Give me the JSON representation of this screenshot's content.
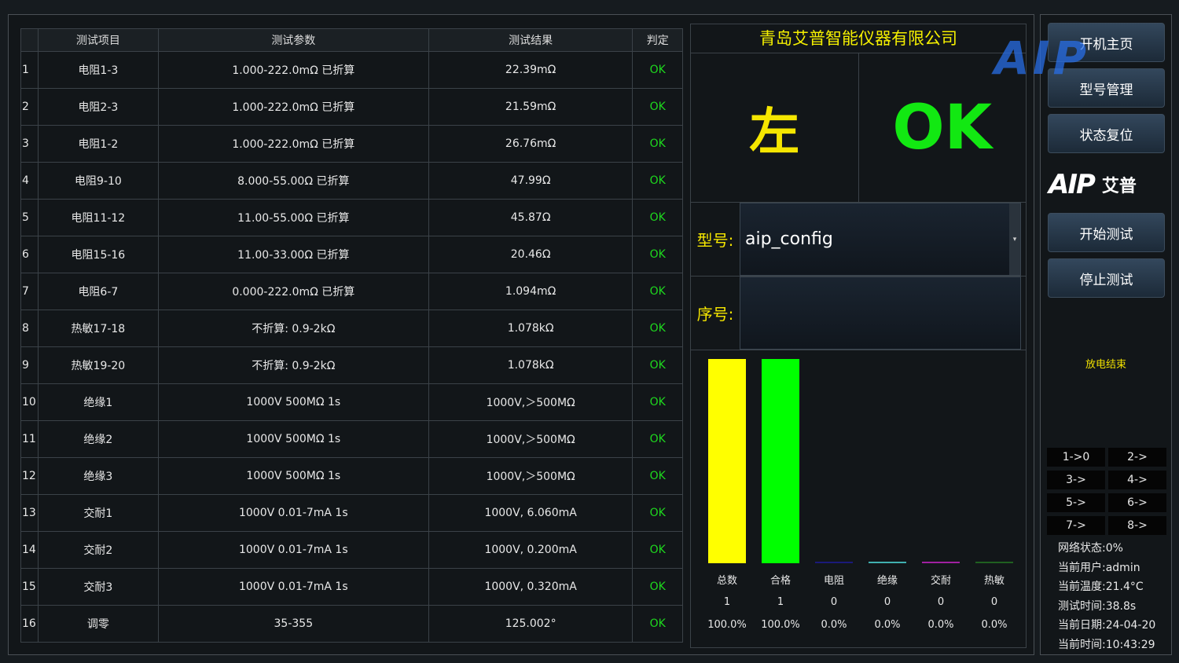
{
  "table": {
    "headers": [
      "",
      "测试项目",
      "测试参数",
      "测试结果",
      "判定"
    ],
    "rows": [
      [
        "1",
        "电阻1-3",
        "1.000-222.0mΩ 已折算",
        "22.39mΩ",
        "OK"
      ],
      [
        "2",
        "电阻2-3",
        "1.000-222.0mΩ 已折算",
        "21.59mΩ",
        "OK"
      ],
      [
        "3",
        "电阻1-2",
        "1.000-222.0mΩ 已折算",
        "26.76mΩ",
        "OK"
      ],
      [
        "4",
        "电阻9-10",
        "8.000-55.00Ω 已折算",
        "47.99Ω",
        "OK"
      ],
      [
        "5",
        "电阻11-12",
        "11.00-55.00Ω 已折算",
        "45.87Ω",
        "OK"
      ],
      [
        "6",
        "电阻15-16",
        "11.00-33.00Ω 已折算",
        "20.46Ω",
        "OK"
      ],
      [
        "7",
        "电阻6-7",
        "0.000-222.0mΩ 已折算",
        "1.094mΩ",
        "OK"
      ],
      [
        "8",
        "热敏17-18",
        "不折算: 0.9-2kΩ",
        "1.078kΩ",
        "OK"
      ],
      [
        "9",
        "热敏19-20",
        "不折算: 0.9-2kΩ",
        "1.078kΩ",
        "OK"
      ],
      [
        "10",
        "绝缘1",
        "1000V 500MΩ 1s",
        "1000V,＞500MΩ",
        "OK"
      ],
      [
        "11",
        "绝缘2",
        "1000V 500MΩ 1s",
        "1000V,＞500MΩ",
        "OK"
      ],
      [
        "12",
        "绝缘3",
        "1000V 500MΩ 1s",
        "1000V,＞500MΩ",
        "OK"
      ],
      [
        "13",
        "交耐1",
        "1000V 0.01-7mA 1s",
        "1000V, 6.060mA",
        "OK"
      ],
      [
        "14",
        "交耐2",
        "1000V 0.01-7mA 1s",
        "1000V, 0.200mA",
        "OK"
      ],
      [
        "15",
        "交耐3",
        "1000V 0.01-7mA 1s",
        "1000V, 0.320mA",
        "OK"
      ],
      [
        "16",
        "调零",
        "35-355",
        "125.002°",
        "OK"
      ]
    ]
  },
  "panel": {
    "company": "青岛艾普智能仪器有限公司",
    "side": "左",
    "result": "OK",
    "model_label": "型号:",
    "model_value": "aip_config",
    "serial_label": "序号:",
    "serial_value": ""
  },
  "chart_data": {
    "type": "bar",
    "categories": [
      "总数",
      "合格",
      "电阻",
      "绝缘",
      "交耐",
      "热敏"
    ],
    "values": [
      1,
      1,
      0,
      0,
      0,
      0
    ],
    "percent": [
      "100.0%",
      "100.0%",
      "0.0%",
      "0.0%",
      "0.0%",
      "0.0%"
    ],
    "colors": [
      "#ffff00",
      "#00ff00",
      "#1a1a7a",
      "#40b0b0",
      "#a020a0",
      "#206020"
    ],
    "ylim": [
      0,
      1
    ]
  },
  "sidebar": {
    "buttons": [
      "开机主页",
      "型号管理",
      "状态复位",
      "开始测试",
      "停止测试"
    ],
    "logo": "AIP",
    "logo_cn": "艾普",
    "watermark": "AIP",
    "discharge": "放电结束",
    "channels": [
      "1->0",
      "2->",
      "3->",
      "4->",
      "5->",
      "6->",
      "7->",
      "8->"
    ],
    "status": [
      "网络状态:0%",
      "当前用户:admin",
      "当前温度:21.4°C",
      "测试时间:38.8s",
      "当前日期:24-04-20",
      "当前时间:10:43:29"
    ]
  }
}
